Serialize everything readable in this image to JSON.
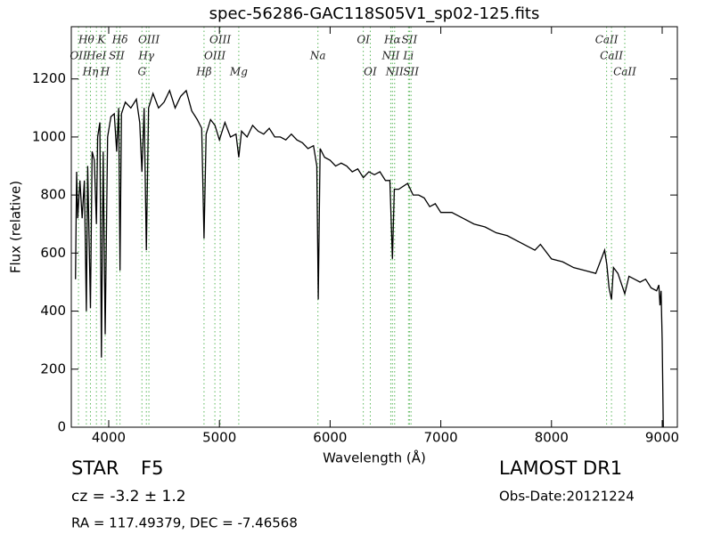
{
  "chart_data": {
    "type": "line",
    "title": "spec-56286-GAC118S05V1_sp02-125.fits",
    "x_label": "Wavelength (Å)",
    "y_label": "Flux (relative)",
    "xlim": [
      3662,
      9137
    ],
    "ylim": [
      0,
      1380
    ],
    "xticks": [
      4000,
      5000,
      6000,
      7000,
      8000,
      9000
    ],
    "yticks": [
      0,
      200,
      400,
      600,
      800,
      1000,
      1200
    ],
    "grid": false,
    "color": "#000000",
    "line_color": "#5cb85c",
    "x": [
      3700,
      3710,
      3720,
      3740,
      3760,
      3780,
      3798,
      3810,
      3835,
      3850,
      3870,
      3889,
      3900,
      3920,
      3934,
      3950,
      3968,
      3990,
      4020,
      4050,
      4072,
      4090,
      4102,
      4115,
      4150,
      4200,
      4250,
      4280,
      4300,
      4320,
      4340,
      4360,
      4400,
      4450,
      4500,
      4550,
      4600,
      4650,
      4700,
      4750,
      4800,
      4840,
      4861,
      4880,
      4920,
      4960,
      5000,
      5050,
      5100,
      5150,
      5175,
      5200,
      5250,
      5300,
      5350,
      5400,
      5450,
      5500,
      5550,
      5600,
      5650,
      5700,
      5750,
      5800,
      5850,
      5880,
      5893,
      5910,
      5950,
      6000,
      6050,
      6100,
      6150,
      6200,
      6250,
      6300,
      6350,
      6400,
      6450,
      6500,
      6540,
      6563,
      6580,
      6620,
      6700,
      6750,
      6800,
      6850,
      6900,
      6950,
      7000,
      7100,
      7200,
      7300,
      7400,
      7500,
      7600,
      7700,
      7800,
      7850,
      7900,
      8000,
      8100,
      8200,
      8300,
      8400,
      8450,
      8480,
      8500,
      8520,
      8542,
      8560,
      8600,
      8662,
      8700,
      8750,
      8800,
      8850,
      8900,
      8950,
      8970,
      8980,
      8990,
      9000,
      9010
    ],
    "values": [
      510,
      880,
      720,
      850,
      720,
      850,
      400,
      900,
      410,
      950,
      920,
      700,
      1000,
      1050,
      240,
      950,
      320,
      1000,
      1070,
      1080,
      950,
      1100,
      540,
      1080,
      1120,
      1100,
      1130,
      1050,
      880,
      1100,
      610,
      1100,
      1150,
      1100,
      1120,
      1160,
      1100,
      1140,
      1160,
      1090,
      1060,
      1030,
      650,
      1010,
      1060,
      1040,
      990,
      1050,
      1000,
      1010,
      930,
      1020,
      1000,
      1040,
      1020,
      1010,
      1030,
      1000,
      1000,
      990,
      1010,
      990,
      980,
      960,
      970,
      900,
      440,
      960,
      930,
      920,
      900,
      910,
      900,
      880,
      890,
      860,
      880,
      870,
      880,
      850,
      850,
      580,
      820,
      820,
      840,
      800,
      800,
      790,
      760,
      770,
      740,
      740,
      720,
      700,
      690,
      670,
      660,
      640,
      620,
      610,
      630,
      580,
      570,
      550,
      540,
      530,
      580,
      610,
      560,
      480,
      440,
      550,
      530,
      460,
      520,
      510,
      500,
      510,
      480,
      470,
      490,
      420,
      470,
      300,
      0
    ],
    "spectral_lines": [
      [
        {
          "label": "Hθ",
          "wavelength": 3798
        },
        {
          "label": "K",
          "wavelength": 3934
        },
        {
          "label": "Hδ",
          "wavelength": 4102
        },
        {
          "label": "OIII",
          "wavelength": 4363
        },
        {
          "label": "OIII",
          "wavelength": 5007
        },
        {
          "label": "OI",
          "wavelength": 6300
        },
        {
          "label": "Hα",
          "wavelength": 6563
        },
        {
          "label": "SII",
          "wavelength": 6717
        },
        {
          "label": "CaII",
          "wavelength": 8498
        }
      ],
      [
        {
          "label": "OII",
          "wavelength": 3727
        },
        {
          "label": "HeI",
          "wavelength": 3889
        },
        {
          "label": "SII",
          "wavelength": 4072
        },
        {
          "label": "Hγ",
          "wavelength": 4340
        },
        {
          "label": "OIII",
          "wavelength": 4959
        },
        {
          "label": "Na",
          "wavelength": 5890
        },
        {
          "label": "NII",
          "wavelength": 6548
        },
        {
          "label": "Li",
          "wavelength": 6708
        },
        {
          "label": "CaII",
          "wavelength": 8542
        }
      ],
      [
        {
          "label": "Hη",
          "wavelength": 3835
        },
        {
          "label": "H",
          "wavelength": 3968
        },
        {
          "label": "G",
          "wavelength": 4300
        },
        {
          "label": "Hβ",
          "wavelength": 4861
        },
        {
          "label": "Mg",
          "wavelength": 5175
        },
        {
          "label": "OI",
          "wavelength": 6363
        },
        {
          "label": "NII",
          "wavelength": 6583
        },
        {
          "label": "SII",
          "wavelength": 6731
        },
        {
          "label": "CaII",
          "wavelength": 8662
        }
      ]
    ],
    "object_class": "STAR",
    "subclass": "F5",
    "redshift": "cz = -3.2 ± 1.2",
    "coordinates": "RA = 117.49379, DEC = -7.46568",
    "survey": "LAMOST DR1",
    "obs_date": "Obs-Date:20121224"
  }
}
